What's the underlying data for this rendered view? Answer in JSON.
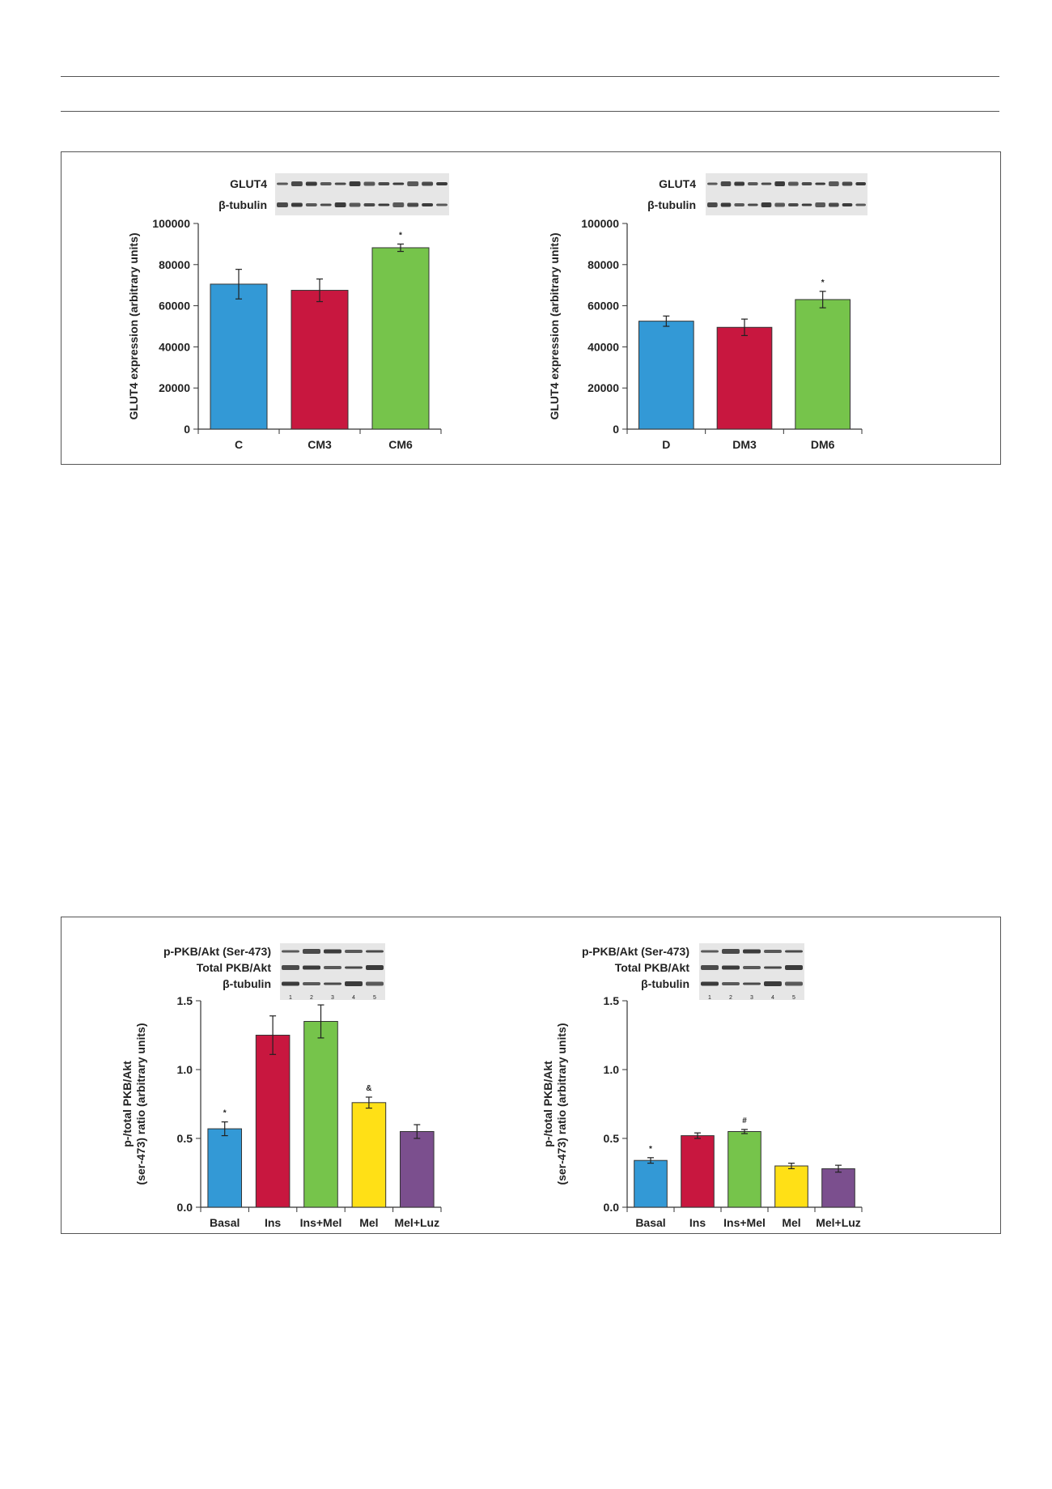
{
  "colors": {
    "blue": "#3399d6",
    "red": "#c8173f",
    "green": "#76c44b",
    "yellow": "#ffe016",
    "purple": "#7b4f8e",
    "blot_band": "#2a2a2a",
    "blot_bg": "#e6e6e6"
  },
  "chart_data": [
    {
      "type": "bar",
      "ylabel": "GLUT4 expression (arbitrary units)",
      "ylim": [
        0,
        100000
      ],
      "yticks": [
        0,
        20000,
        40000,
        60000,
        80000,
        100000
      ],
      "ytick_labels": [
        "0",
        "20000",
        "40000",
        "60000",
        "80000",
        "100000"
      ],
      "categories": [
        "C",
        "CM3",
        "CM6"
      ],
      "values": [
        70500,
        67500,
        88200
      ],
      "errors": [
        7200,
        5500,
        1800
      ],
      "annotations": [
        "",
        "",
        "*"
      ],
      "bar_colors": [
        "#3399d6",
        "#c8173f",
        "#76c44b"
      ],
      "blot_labels": [
        "GLUT4",
        "β-tubulin"
      ],
      "grid": false
    },
    {
      "type": "bar",
      "ylabel": "GLUT4 expression (arbitrary units)",
      "ylim": [
        0,
        100000
      ],
      "yticks": [
        0,
        20000,
        40000,
        60000,
        80000,
        100000
      ],
      "ytick_labels": [
        "0",
        "20000",
        "40000",
        "60000",
        "80000",
        "100000"
      ],
      "categories": [
        "D",
        "DM3",
        "DM6"
      ],
      "values": [
        52500,
        49500,
        63000
      ],
      "errors": [
        2500,
        4000,
        4000
      ],
      "annotations": [
        "",
        "",
        "*"
      ],
      "bar_colors": [
        "#3399d6",
        "#c8173f",
        "#76c44b"
      ],
      "blot_labels": [
        "GLUT4",
        "β-tubulin"
      ],
      "grid": false
    },
    {
      "type": "bar",
      "ylabel": "p-/total PKB/Akt (ser-473) ratio (arbitrary units)",
      "ylim": [
        0,
        1.5
      ],
      "yticks": [
        0,
        0.5,
        1.0,
        1.5
      ],
      "ytick_labels": [
        "0.0",
        "0.5",
        "1.0",
        "1.5"
      ],
      "categories": [
        "Basal",
        "Ins",
        "Ins+Mel",
        "Mel",
        "Mel+Luz"
      ],
      "values": [
        0.57,
        1.25,
        1.35,
        0.76,
        0.55
      ],
      "errors": [
        0.05,
        0.14,
        0.12,
        0.04,
        0.05
      ],
      "annotations": [
        "*",
        "",
        "",
        "&",
        ""
      ],
      "bar_colors": [
        "#3399d6",
        "#c8173f",
        "#76c44b",
        "#ffe016",
        "#7b4f8e"
      ],
      "blot_labels": [
        "p-PKB/Akt (Ser-473)",
        "Total PKB/Akt",
        "β-tubulin"
      ],
      "lane_labels": [
        "1",
        "2",
        "3",
        "4",
        "5"
      ],
      "grid": false
    },
    {
      "type": "bar",
      "ylabel": "p-/total PKB/Akt (ser-473) ratio (arbitrary units)",
      "ylim": [
        0,
        1.5
      ],
      "yticks": [
        0,
        0.5,
        1.0,
        1.5
      ],
      "ytick_labels": [
        "0.0",
        "0.5",
        "1.0",
        "1.5"
      ],
      "categories": [
        "Basal",
        "Ins",
        "Ins+Mel",
        "Mel",
        "Mel+Luz"
      ],
      "values": [
        0.34,
        0.52,
        0.55,
        0.3,
        0.28
      ],
      "errors": [
        0.02,
        0.02,
        0.015,
        0.02,
        0.025
      ],
      "annotations": [
        "*",
        "",
        "#",
        "",
        ""
      ],
      "bar_colors": [
        "#3399d6",
        "#c8173f",
        "#76c44b",
        "#ffe016",
        "#7b4f8e"
      ],
      "blot_labels": [
        "p-PKB/Akt (Ser-473)",
        "Total PKB/Akt",
        "β-tubulin"
      ],
      "lane_labels": [
        "1",
        "2",
        "3",
        "4",
        "5"
      ],
      "grid": false
    }
  ]
}
